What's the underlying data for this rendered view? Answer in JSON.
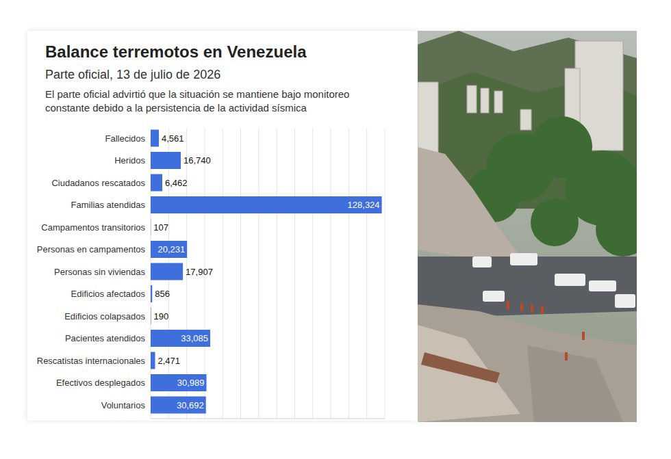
{
  "chart_data": {
    "type": "bar",
    "orientation": "horizontal",
    "title": "Balance terremotos en Venezuela",
    "subtitle": "Parte oficial, 13 de julio de 2026",
    "note": "El parte oficial advirtió que la situación se mantiene bajo monitoreo constante debido a la persistencia de la actividad sísmica",
    "categories": [
      "Fallecidos",
      "Heridos",
      "Ciudadanos rescatados",
      "Familias atendidas",
      "Campamentos transitorios",
      "Personas en campamentos",
      "Personas sin viviendas",
      "Edificios afectados",
      "Edificios colapsados",
      "Pacientes atendidos",
      "Rescatistas internacionales",
      "Efectivos desplegados",
      "Voluntarios"
    ],
    "values": [
      4561,
      16740,
      6462,
      128324,
      107,
      20231,
      17907,
      856,
      190,
      33085,
      2471,
      30989,
      30692
    ],
    "value_labels": [
      "4,561",
      "16,740",
      "6,462",
      "128,324",
      "107",
      "20,231",
      "17,907",
      "856",
      "190",
      "33,085",
      "2,471",
      "30,989",
      "30,692"
    ],
    "color": "#3f6fdc",
    "xlim": [
      0,
      130000
    ],
    "xticks": [
      0,
      10000,
      20000,
      30000,
      40000,
      50000,
      60000,
      70000,
      80000,
      90000,
      100000,
      110000,
      120000,
      130000
    ],
    "grid": true,
    "data_labels": true,
    "tick_labels": "y"
  }
}
